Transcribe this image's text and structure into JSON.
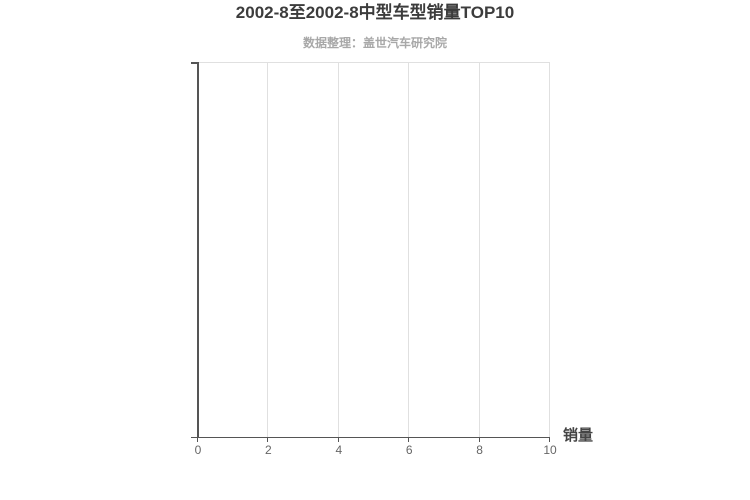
{
  "header": {
    "title": "2002-8至2002-8中型车型销量TOP10",
    "subtitle": "数据整理：盖世汽车研究院"
  },
  "axis": {
    "name": "销量",
    "tick_labels": [
      "0",
      "2",
      "4",
      "6",
      "8",
      "10"
    ]
  },
  "chart_data": {
    "type": "bar",
    "orientation": "horizontal",
    "title": "2002-8至2002-8中型车型销量TOP10",
    "subtitle": "数据整理：盖世汽车研究院",
    "xlabel": "销量",
    "ylabel": "",
    "xlim": [
      0,
      10
    ],
    "xticks": [
      0,
      2,
      4,
      6,
      8,
      10
    ],
    "categories": [],
    "series": [
      {
        "name": "销量",
        "values": []
      }
    ],
    "grid": true,
    "legend": false
  },
  "colors": {
    "background": "#ffffff",
    "title_text": "#3c3c3c",
    "subtitle_text": "#a8a8a8",
    "axis_line": "#555555",
    "gridline": "#e0e0e0",
    "tick_label_text": "#666666",
    "axis_name_text": "#444444"
  }
}
